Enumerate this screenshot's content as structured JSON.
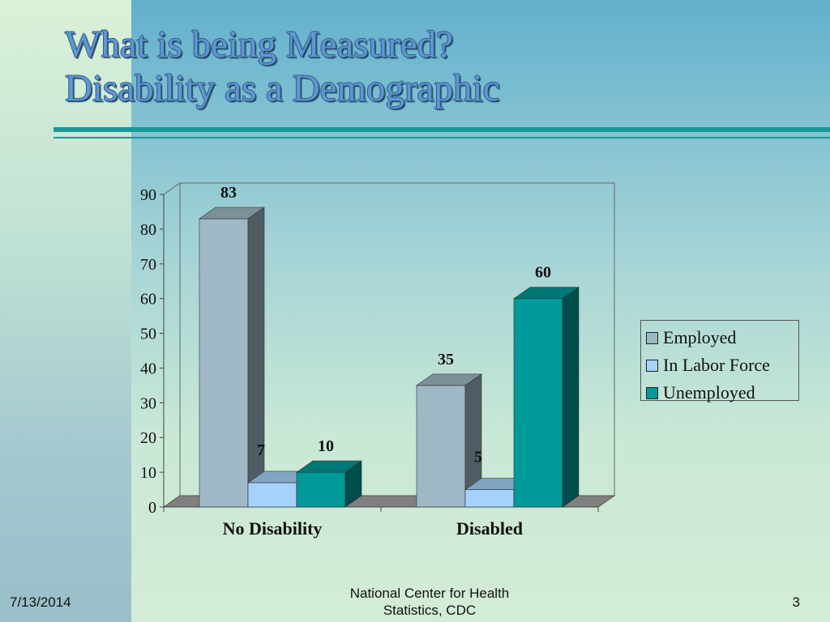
{
  "slide": {
    "title_line1": "What is being Measured?",
    "title_line2": "Disability as a Demographic",
    "footer_date": "7/13/2014",
    "footer_center_line1": "National Center for Health",
    "footer_center_line2": "Statistics, CDC",
    "page_number": "3"
  },
  "chart_data": {
    "type": "bar",
    "categories": [
      "No Disability",
      "Disabled"
    ],
    "series": [
      {
        "name": "Employed",
        "values": [
          83,
          35
        ],
        "color": "#9fb8c6"
      },
      {
        "name": "In Labor Force",
        "values": [
          7,
          5
        ],
        "color": "#a4d2fb"
      },
      {
        "name": "Unemployed",
        "values": [
          10,
          60
        ],
        "color": "#009999"
      }
    ],
    "ylim": [
      0,
      90
    ],
    "yticks": [
      "0",
      "10",
      "20",
      "30",
      "40",
      "50",
      "60",
      "70",
      "80",
      "90"
    ],
    "data_labels": true,
    "three_d": true,
    "grid": false,
    "legend_position": "right"
  },
  "colors": {
    "title": "#5f97d0",
    "rule": "#189a9a",
    "floor": "#808080"
  }
}
